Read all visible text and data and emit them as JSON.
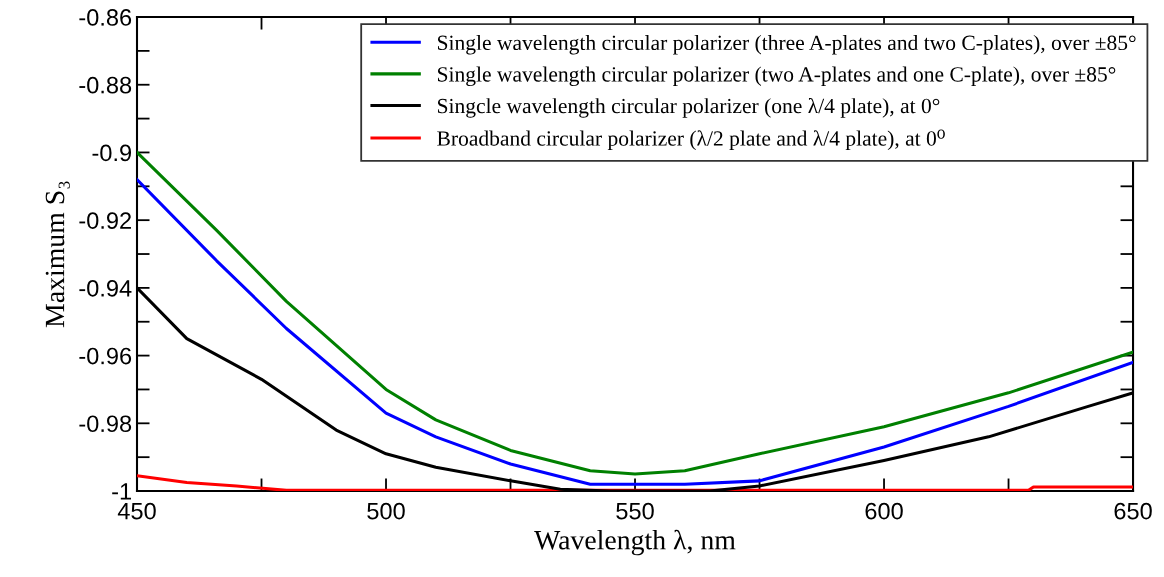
{
  "chart_data": {
    "type": "line",
    "xlabel": "Wavelength λ, nm",
    "ylabel": "Maximum S₃",
    "xlim": [
      450,
      650
    ],
    "ylim": [
      -1,
      -0.86
    ],
    "xticks": [
      450,
      500,
      550,
      600,
      650
    ],
    "yticks": [
      -0.86,
      -0.88,
      -0.9,
      -0.92,
      -0.94,
      -0.96,
      -0.98,
      -1
    ],
    "legend": "top right",
    "grid": false,
    "marker": "none",
    "line_style": "solid",
    "series": [
      {
        "name": "Single wavelength circular polarizer (three A-plates and two C-plates), over ±85°",
        "color": "#0000ff",
        "x": [
          450,
          466,
          480,
          500,
          510,
          525,
          541,
          550,
          560,
          575,
          600,
          625,
          650
        ],
        "values": [
          -0.908,
          -0.932,
          -0.952,
          -0.977,
          -0.984,
          -0.992,
          -0.998,
          -0.998,
          -0.998,
          -0.997,
          -0.987,
          -0.975,
          -0.962
        ]
      },
      {
        "name": "Single wavelength circular polarizer (two A-plates and one C-plate), over ±85°",
        "color": "#008000",
        "x": [
          450,
          466,
          480,
          500,
          510,
          525,
          541,
          550,
          560,
          575,
          600,
          625,
          650
        ],
        "values": [
          -0.9,
          -0.923,
          -0.944,
          -0.97,
          -0.979,
          -0.988,
          -0.994,
          -0.995,
          -0.994,
          -0.989,
          -0.981,
          -0.971,
          -0.959
        ]
      },
      {
        "name": "Singcle wavelength circular polarizer (one λ/4 plate), at 0°",
        "color": "#000000",
        "x": [
          450,
          460,
          475,
          490,
          500,
          510,
          525,
          535,
          545,
          555,
          565,
          575,
          600,
          621,
          641,
          650
        ],
        "values": [
          -0.94,
          -0.955,
          -0.967,
          -0.982,
          -0.989,
          -0.993,
          -0.997,
          -0.9995,
          -1,
          -1,
          -1,
          -0.9985,
          -0.991,
          -0.984,
          -0.975,
          -0.971
        ]
      },
      {
        "name": "Broadband circular polarizer (λ/2 plate and λ/4 plate), at 0⁰",
        "color": "#ff0000",
        "x": [
          450,
          460,
          470,
          480,
          629,
          630,
          650
        ],
        "values": [
          -0.9955,
          -0.9975,
          -0.9985,
          -0.9998,
          -0.9998,
          -0.9988,
          -0.9988
        ]
      }
    ]
  }
}
